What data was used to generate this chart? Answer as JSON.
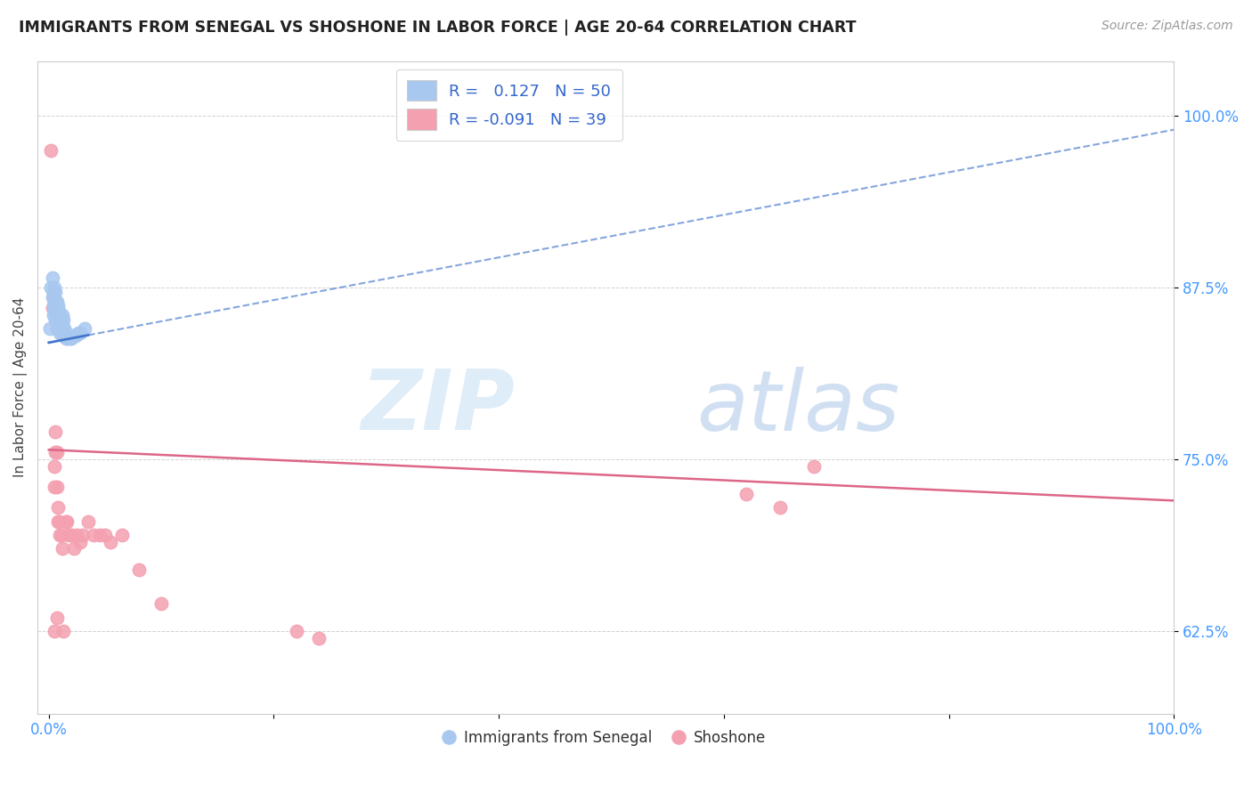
{
  "title": "IMMIGRANTS FROM SENEGAL VS SHOSHONE IN LABOR FORCE | AGE 20-64 CORRELATION CHART",
  "source": "Source: ZipAtlas.com",
  "ylabel": "In Labor Force | Age 20-64",
  "xlim": [
    -0.01,
    1.0
  ],
  "ylim": [
    0.565,
    1.04
  ],
  "xticks": [
    0.0,
    0.2,
    0.4,
    0.6,
    0.8,
    1.0
  ],
  "xticklabels": [
    "0.0%",
    "",
    "",
    "",
    "",
    "100.0%"
  ],
  "ytick_positions": [
    0.625,
    0.75,
    0.875,
    1.0
  ],
  "ytick_labels": [
    "62.5%",
    "75.0%",
    "87.5%",
    "100.0%"
  ],
  "legend_r_senegal": "0.127",
  "legend_n_senegal": "50",
  "legend_r_shoshone": "-0.091",
  "legend_n_shoshone": "39",
  "senegal_color": "#a8c8f0",
  "shoshone_color": "#f4a0b0",
  "senegal_line_color": "#4477cc",
  "shoshone_line_color": "#dd6688",
  "watermark_zip": "ZIP",
  "watermark_atlas": "atlas",
  "senegal_x": [
    0.001,
    0.002,
    0.003,
    0.003,
    0.004,
    0.004,
    0.004,
    0.005,
    0.005,
    0.005,
    0.006,
    0.006,
    0.006,
    0.006,
    0.007,
    0.007,
    0.007,
    0.007,
    0.008,
    0.008,
    0.008,
    0.009,
    0.009,
    0.009,
    0.01,
    0.01,
    0.01,
    0.011,
    0.011,
    0.012,
    0.012,
    0.012,
    0.013,
    0.013,
    0.013,
    0.014,
    0.014,
    0.015,
    0.015,
    0.016,
    0.017,
    0.018,
    0.019,
    0.02,
    0.021,
    0.022,
    0.024,
    0.026,
    0.028,
    0.032
  ],
  "senegal_y": [
    0.845,
    0.875,
    0.868,
    0.882,
    0.855,
    0.862,
    0.872,
    0.858,
    0.865,
    0.875,
    0.852,
    0.858,
    0.865,
    0.872,
    0.845,
    0.852,
    0.858,
    0.865,
    0.848,
    0.855,
    0.862,
    0.845,
    0.852,
    0.858,
    0.842,
    0.848,
    0.855,
    0.845,
    0.852,
    0.842,
    0.848,
    0.855,
    0.84,
    0.845,
    0.852,
    0.84,
    0.845,
    0.838,
    0.842,
    0.84,
    0.838,
    0.84,
    0.838,
    0.838,
    0.84,
    0.84,
    0.84,
    0.842,
    0.842,
    0.845
  ],
  "shoshone_x": [
    0.002,
    0.003,
    0.004,
    0.005,
    0.005,
    0.006,
    0.006,
    0.007,
    0.007,
    0.008,
    0.008,
    0.009,
    0.01,
    0.011,
    0.012,
    0.013,
    0.015,
    0.016,
    0.018,
    0.02,
    0.022,
    0.025,
    0.028,
    0.03,
    0.035,
    0.04,
    0.045,
    0.05,
    0.055,
    0.065,
    0.08,
    0.1,
    0.22,
    0.24,
    0.62,
    0.65,
    0.68,
    0.005,
    0.007
  ],
  "shoshone_y": [
    0.975,
    0.86,
    0.87,
    0.745,
    0.73,
    0.77,
    0.755,
    0.755,
    0.73,
    0.715,
    0.705,
    0.705,
    0.695,
    0.695,
    0.685,
    0.625,
    0.705,
    0.705,
    0.695,
    0.695,
    0.685,
    0.695,
    0.69,
    0.695,
    0.705,
    0.695,
    0.695,
    0.695,
    0.69,
    0.695,
    0.67,
    0.645,
    0.625,
    0.62,
    0.725,
    0.715,
    0.745,
    0.625,
    0.635
  ],
  "senegal_trendline_x": [
    0.0,
    1.0
  ],
  "senegal_trendline_y_start": 0.835,
  "senegal_trendline_y_end": 0.99,
  "shoshone_trendline_x": [
    0.0,
    1.0
  ],
  "shoshone_trendline_y_start": 0.757,
  "shoshone_trendline_y_end": 0.72
}
